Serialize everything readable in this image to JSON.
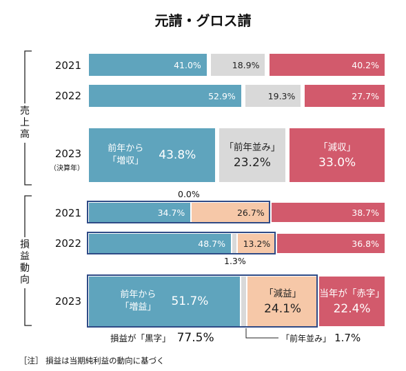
{
  "title": "元請・グロス請",
  "groups": [
    {
      "label": "売上高",
      "chars": [
        "売",
        "上",
        "高"
      ]
    },
    {
      "label": "損益動向",
      "chars": [
        "損",
        "益",
        "動",
        "向"
      ]
    }
  ],
  "colors": {
    "blue": "#5fa4bd",
    "gray": "#d9d9d9",
    "red": "#d25a6c",
    "peach": "#f6c8a8",
    "frame": "#2e4a86"
  },
  "chart_data": {
    "type": "bar",
    "stacked": true,
    "orientation": "horizontal",
    "title": "元請・グロス請",
    "percent_max": 100,
    "sections": [
      {
        "group": "売上高",
        "rows": [
          {
            "year": "2021",
            "year_sub": "",
            "segments": [
              {
                "label": "41.0%",
                "value": 41.0,
                "color": "blue"
              },
              {
                "label": "18.9%",
                "value": 18.9,
                "color": "gray"
              },
              {
                "label": "40.2%",
                "value": 40.2,
                "color": "red"
              }
            ]
          },
          {
            "year": "2022",
            "year_sub": "",
            "segments": [
              {
                "label": "52.9%",
                "value": 52.9,
                "color": "blue"
              },
              {
                "label": "19.3%",
                "value": 19.3,
                "color": "gray"
              },
              {
                "label": "27.7%",
                "value": 27.7,
                "color": "red"
              }
            ]
          },
          {
            "year": "2023",
            "year_sub": "（決算年）",
            "segments": [
              {
                "label": "43.8%",
                "value": 43.8,
                "color": "blue",
                "name_lines": [
                  "前年から",
                  "「増収」"
                ]
              },
              {
                "label": "23.2%",
                "value": 23.2,
                "color": "gray",
                "name_lines": [
                  "「前年並み」"
                ]
              },
              {
                "label": "33.0%",
                "value": 33.0,
                "color": "red",
                "name_lines": [
                  "「減収」"
                ]
              }
            ]
          }
        ]
      },
      {
        "group": "損益動向",
        "rows": [
          {
            "year": "2021",
            "year_sub": "",
            "segments": [
              {
                "label": "34.7%",
                "value": 34.7,
                "color": "blue"
              },
              {
                "label": "0.0%",
                "value": 0.0,
                "color": "gray"
              },
              {
                "label": "26.7%",
                "value": 26.7,
                "color": "peach"
              },
              {
                "label": "38.7%",
                "value": 38.7,
                "color": "red"
              }
            ]
          },
          {
            "year": "2022",
            "year_sub": "",
            "segments": [
              {
                "label": "48.7%",
                "value": 48.7,
                "color": "blue"
              },
              {
                "label": "1.3%",
                "value": 1.3,
                "color": "gray"
              },
              {
                "label": "13.2%",
                "value": 13.2,
                "color": "peach"
              },
              {
                "label": "36.8%",
                "value": 36.8,
                "color": "red"
              }
            ]
          },
          {
            "year": "2023",
            "year_sub": "",
            "segments": [
              {
                "label": "51.7%",
                "value": 51.7,
                "color": "blue",
                "name_lines": [
                  "前年から",
                  "「増益」"
                ]
              },
              {
                "label": "1.7%",
                "value": 1.7,
                "color": "gray"
              },
              {
                "label": "24.1%",
                "value": 24.1,
                "color": "peach",
                "name_lines": [
                  "「減益」"
                ]
              },
              {
                "label": "22.4%",
                "value": 22.4,
                "color": "red",
                "name_lines": [
                  "当年が「赤字」"
                ]
              }
            ]
          }
        ]
      }
    ],
    "annotations": {
      "kurojiteki": {
        "prefix": "損益が「黒字」",
        "value": "77.5%"
      },
      "flat": {
        "prefix": "「前年並み」",
        "value": "1.7%"
      }
    }
  },
  "note": "［注］ 損益は当期純利益の動向に基づく"
}
